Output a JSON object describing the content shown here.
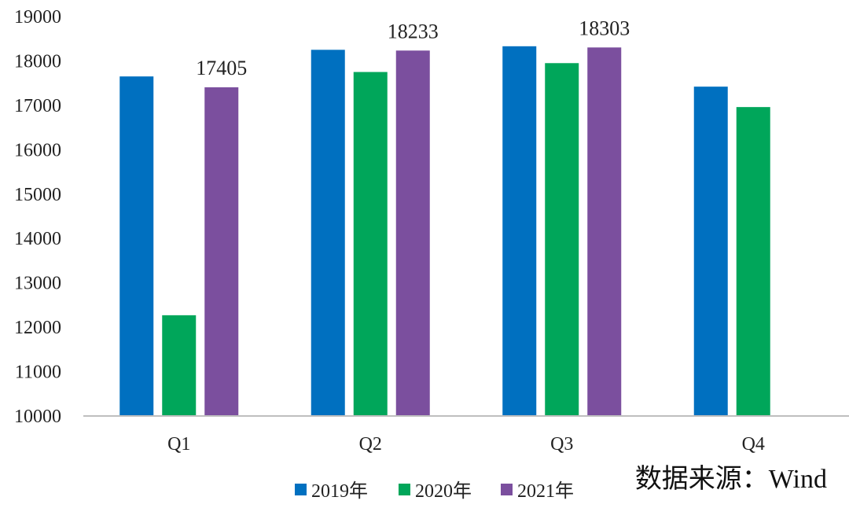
{
  "chart_data": {
    "type": "bar",
    "categories": [
      "Q1",
      "Q2",
      "Q3",
      "Q4"
    ],
    "series": [
      {
        "name": "2019年",
        "color": "#0070C0",
        "values": [
          17650,
          18250,
          18330,
          17420
        ]
      },
      {
        "name": "2020年",
        "color": "#00A65A",
        "values": [
          12270,
          17750,
          17950,
          16960
        ]
      },
      {
        "name": "2021年",
        "color": "#7B4F9E",
        "values": [
          17405,
          18233,
          18303,
          null
        ]
      }
    ],
    "data_labels": [
      {
        "series": 2,
        "category": 0,
        "text": "17405"
      },
      {
        "series": 2,
        "category": 1,
        "text": "18233"
      },
      {
        "series": 2,
        "category": 2,
        "text": "18303"
      }
    ],
    "ylim": [
      10000,
      19000
    ],
    "yticks": [
      "10000",
      "11000",
      "12000",
      "13000",
      "14000",
      "15000",
      "16000",
      "17000",
      "18000",
      "19000"
    ],
    "grid": false,
    "legend_position": "bottom",
    "source_note": "数据来源：Wind",
    "axis_color": "#BFBFBF"
  }
}
